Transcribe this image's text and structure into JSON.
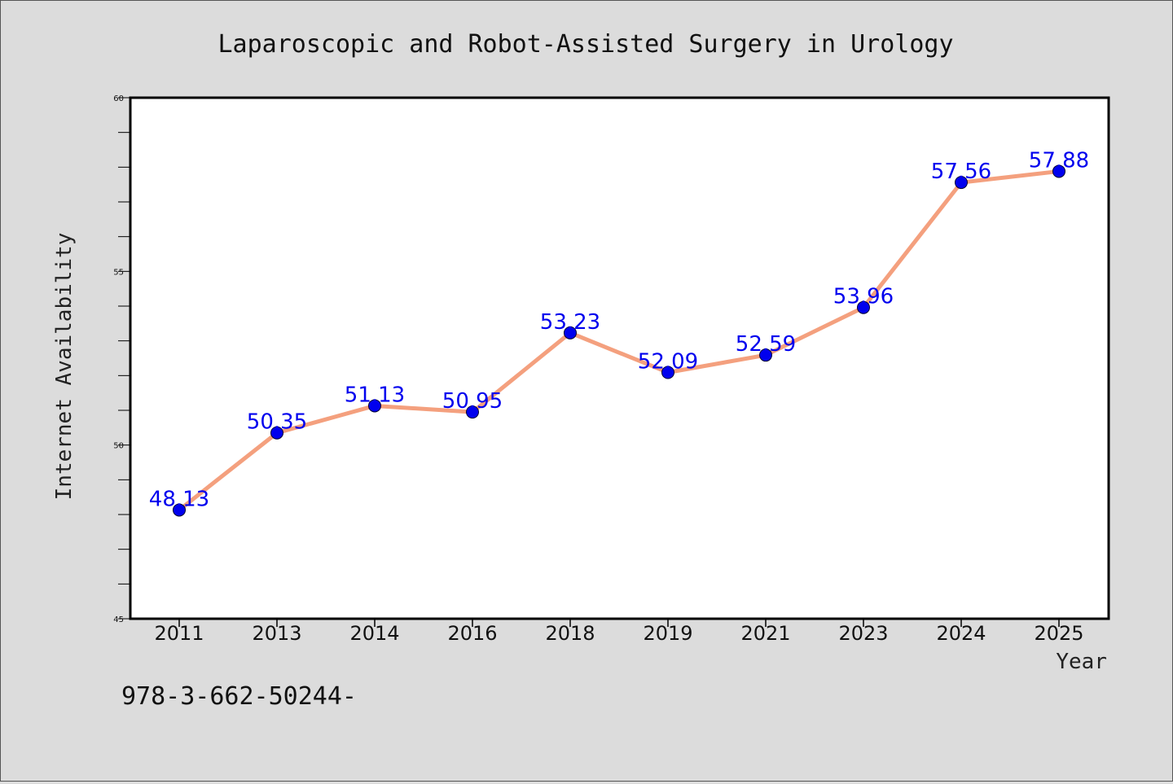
{
  "chart_data": {
    "type": "line",
    "title": "Laparoscopic and Robot-Assisted Surgery in Urology",
    "xlabel": "Year",
    "ylabel": "Internet Availability",
    "categories": [
      "2011",
      "2013",
      "2014",
      "2016",
      "2018",
      "2019",
      "2021",
      "2023",
      "2024",
      "2025"
    ],
    "series": [
      {
        "values": [
          48.13,
          50.35,
          51.13,
          50.95,
          53.23,
          52.09,
          52.59,
          53.96,
          57.56,
          57.88
        ],
        "labels": [
          "48.13",
          "50.35",
          "51.13",
          "50.95",
          "53.23",
          "52.09",
          "52.59",
          "53.96",
          "57.56",
          "57.88"
        ]
      }
    ],
    "ylim": [
      45,
      60
    ],
    "yticks": [
      "45",
      "50",
      "55",
      "60"
    ],
    "grid": false,
    "line_color": "#f4a07e",
    "marker_color": "#0000ee",
    "label_color": "#0000ee"
  },
  "footer_text": "978-3-662-50244-"
}
